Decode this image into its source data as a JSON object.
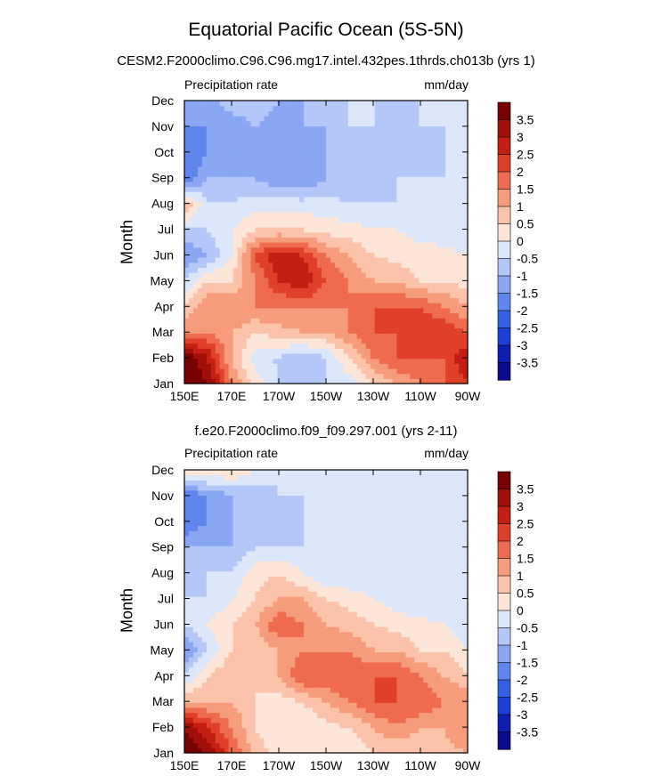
{
  "figure_title": "Equatorial Pacific Ocean (5S-5N)",
  "colors": {
    "levels": [
      -3.5,
      -3,
      -2.5,
      -2,
      -1.5,
      -1,
      -0.5,
      0,
      0.5,
      1,
      1.5,
      2,
      2.5,
      3,
      3.5
    ],
    "fills": [
      "#0a0a8c",
      "#0c1fb0",
      "#1b3fd8",
      "#3462e5",
      "#5f86ee",
      "#89a7f3",
      "#b3c8f8",
      "#dde7fb",
      "#fde5d8",
      "#fbc4aa",
      "#f69c7d",
      "#ee6b4f",
      "#e0402a",
      "#c41f12",
      "#a00f08",
      "#780000"
    ]
  },
  "chart_data": [
    {
      "type": "heatmap",
      "subtitle": "CESM2.F2000climo.C96.C96.mg17.intel.432pes.1thrds.ch013b (yrs 1)",
      "variable": "Precipitation rate",
      "units": "mm/day",
      "xlabel": "",
      "ylabel": "Month",
      "x_ticks": [
        "150E",
        "170E",
        "170W",
        "150W",
        "130W",
        "110W",
        "90W"
      ],
      "y_ticks": [
        "Jan",
        "Feb",
        "Mar",
        "Apr",
        "May",
        "Jun",
        "Jul",
        "Aug",
        "Sep",
        "Oct",
        "Nov",
        "Dec"
      ],
      "colorbar_labels": [
        "3.5",
        "3",
        "2.5",
        "2",
        "1.5",
        "1",
        "0.5",
        "0",
        "-0.5",
        "-1",
        "-1.5",
        "-2",
        "-2.5",
        "-3",
        "-3.5"
      ],
      "grid_lon": [
        150,
        160,
        170,
        180,
        190,
        200,
        210,
        220,
        230,
        240,
        250,
        260,
        270
      ],
      "values_by_month": [
        [
          4.0,
          3.5,
          1.5,
          0.3,
          -0.5,
          -0.7,
          -0.5,
          -0.3,
          0.5,
          1.0,
          1.5,
          2.0,
          2.5
        ],
        [
          4.0,
          3.0,
          1.0,
          -0.3,
          -0.6,
          -1.0,
          -0.5,
          0.5,
          1.5,
          2.0,
          2.0,
          2.0,
          3.0
        ],
        [
          1.5,
          1.5,
          1.0,
          0.5,
          0.8,
          1.0,
          1.0,
          1.5,
          2.0,
          2.0,
          2.5,
          2.5,
          2.0
        ],
        [
          0.5,
          1.5,
          1.5,
          1.5,
          1.5,
          1.5,
          1.5,
          1.5,
          2.0,
          2.0,
          2.0,
          1.5,
          1.0
        ],
        [
          -0.5,
          0.5,
          0.5,
          1.5,
          2.5,
          3.0,
          2.0,
          1.5,
          1.0,
          1.0,
          0.5,
          0.5,
          0.3
        ],
        [
          -1.5,
          -1.0,
          0.0,
          2.0,
          3.0,
          2.5,
          1.5,
          1.0,
          0.5,
          0.3,
          0.2,
          0.1,
          0.0
        ],
        [
          -0.5,
          -0.5,
          0.0,
          0.5,
          0.5,
          0.5,
          0.3,
          0.2,
          0.0,
          0.0,
          -0.2,
          -0.2,
          -0.3
        ],
        [
          1.0,
          -0.5,
          -0.5,
          -0.2,
          -0.2,
          -0.3,
          -0.3,
          -0.5,
          -0.5,
          -0.5,
          -0.5,
          -0.5,
          -0.5
        ],
        [
          -2.0,
          -1.0,
          -1.0,
          -1.0,
          -1.5,
          -1.5,
          -1.0,
          -1.0,
          -1.0,
          -0.5,
          -0.5,
          -0.5,
          -0.5
        ],
        [
          -2.0,
          -1.5,
          -1.5,
          -1.5,
          -1.5,
          -1.5,
          -1.0,
          -1.0,
          -1.0,
          -1.0,
          -1.0,
          -0.5,
          -0.5
        ],
        [
          -1.5,
          -1.5,
          -1.5,
          -1.0,
          -1.5,
          -1.0,
          -1.0,
          -0.5,
          -0.5,
          -1.0,
          -0.5,
          -0.5,
          -0.5
        ],
        [
          -1.0,
          -1.5,
          -0.5,
          -0.5,
          -1.0,
          -1.0,
          -1.0,
          -0.5,
          -0.5,
          -0.5,
          -0.5,
          -0.5,
          -0.5
        ]
      ]
    },
    {
      "type": "heatmap",
      "subtitle": "f.e20.F2000climo.f09_f09.297.001 (yrs 2-11)",
      "variable": "Precipitation rate",
      "units": "mm/day",
      "xlabel": "",
      "ylabel": "Month",
      "x_ticks": [
        "150E",
        "170E",
        "170W",
        "150W",
        "130W",
        "110W",
        "90W"
      ],
      "y_ticks": [
        "Jan",
        "Feb",
        "Mar",
        "Apr",
        "May",
        "Jun",
        "Jul",
        "Aug",
        "Sep",
        "Oct",
        "Nov",
        "Dec"
      ],
      "colorbar_labels": [
        "3.5",
        "3",
        "2.5",
        "2",
        "1.5",
        "1",
        "0.5",
        "0",
        "-0.5",
        "-1",
        "-1.5",
        "-2",
        "-2.5",
        "-3",
        "-3.5"
      ],
      "grid_lon": [
        150,
        160,
        170,
        180,
        190,
        200,
        210,
        220,
        230,
        240,
        250,
        260,
        270
      ],
      "values_by_month": [
        [
          4.0,
          3.5,
          2.0,
          0.8,
          0.3,
          0.0,
          0.0,
          0.0,
          0.5,
          0.5,
          0.5,
          0.8,
          1.0
        ],
        [
          3.5,
          2.5,
          1.5,
          0.5,
          0.0,
          0.0,
          0.3,
          0.5,
          1.0,
          1.5,
          1.0,
          1.0,
          1.5
        ],
        [
          1.0,
          1.0,
          1.0,
          0.5,
          0.3,
          0.5,
          1.0,
          1.5,
          2.0,
          2.0,
          2.0,
          1.5,
          1.5
        ],
        [
          -0.5,
          0.5,
          1.0,
          0.5,
          1.0,
          2.0,
          2.0,
          2.0,
          2.0,
          2.0,
          1.5,
          1.0,
          0.5
        ],
        [
          -1.5,
          -0.5,
          0.5,
          0.5,
          1.0,
          1.5,
          1.5,
          1.5,
          1.0,
          1.0,
          0.5,
          0.5,
          0.0
        ],
        [
          -0.5,
          0.0,
          0.5,
          1.0,
          2.0,
          1.5,
          1.0,
          0.8,
          0.5,
          0.3,
          0.2,
          0.0,
          -0.3
        ],
        [
          -0.5,
          -0.5,
          0.0,
          0.5,
          1.0,
          1.0,
          0.5,
          0.3,
          0.0,
          -0.3,
          -0.5,
          -0.5,
          -0.5
        ],
        [
          -0.8,
          -0.5,
          -0.5,
          0.3,
          0.5,
          0.0,
          -0.5,
          -0.5,
          -0.5,
          -0.5,
          -0.5,
          -0.5,
          -0.5
        ],
        [
          -1.0,
          -1.0,
          -1.0,
          -0.5,
          -0.5,
          -0.5,
          -0.5,
          -0.5,
          -0.5,
          -0.5,
          -0.5,
          -0.5,
          -0.5
        ],
        [
          -2.0,
          -1.5,
          -1.0,
          -1.0,
          -1.0,
          -0.5,
          -0.5,
          -0.5,
          -0.5,
          -0.5,
          -0.5,
          -0.5,
          -0.5
        ],
        [
          -2.0,
          -1.5,
          -1.0,
          -1.0,
          -0.5,
          -0.5,
          -0.5,
          -0.5,
          -0.5,
          -0.5,
          -0.5,
          -0.5,
          -0.5
        ],
        [
          0.5,
          0.5,
          0.5,
          0.0,
          -0.5,
          -0.5,
          -0.5,
          -0.5,
          -0.5,
          -0.5,
          -0.5,
          -0.5,
          -0.5
        ]
      ]
    }
  ]
}
